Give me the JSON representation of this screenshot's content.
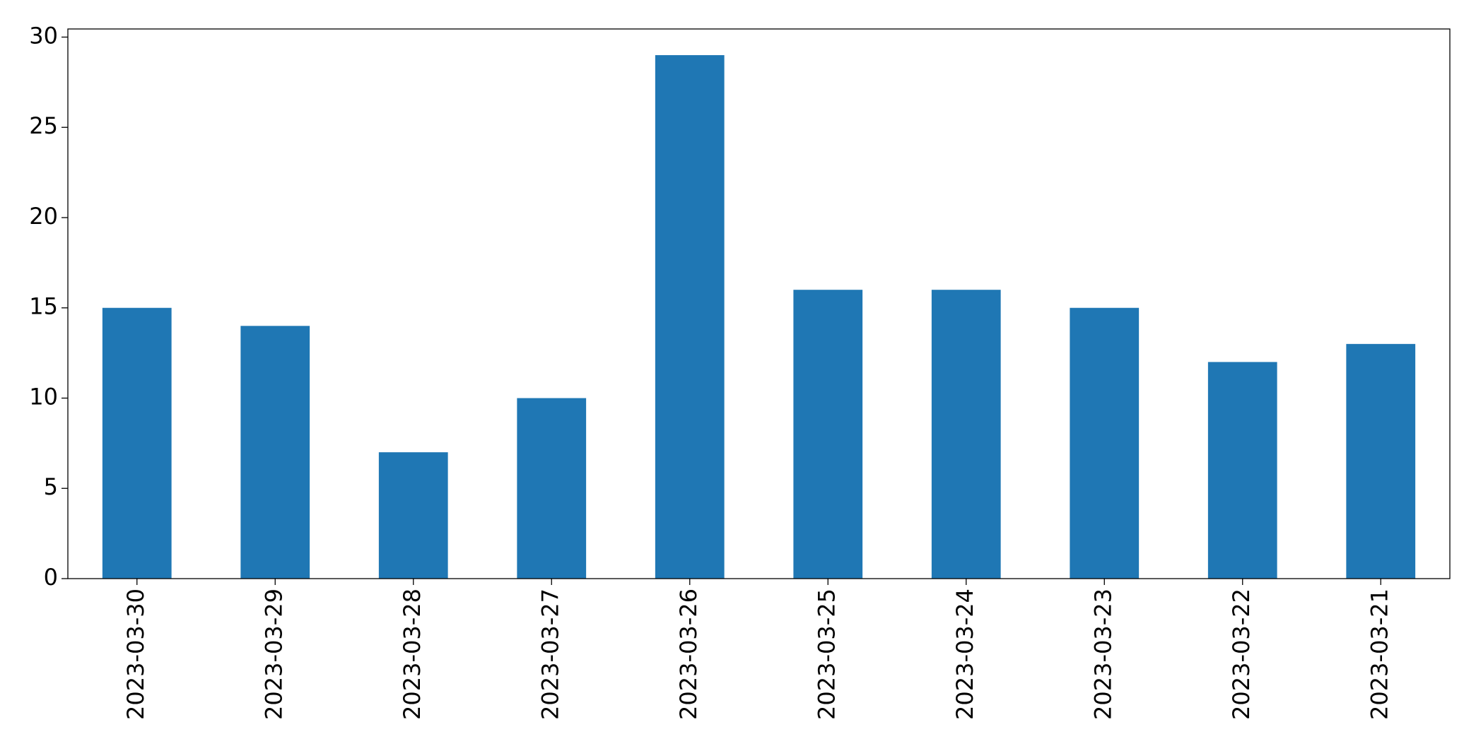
{
  "chart_data": {
    "type": "bar",
    "categories": [
      "2023-03-30",
      "2023-03-29",
      "2023-03-28",
      "2023-03-27",
      "2023-03-26",
      "2023-03-25",
      "2023-03-24",
      "2023-03-23",
      "2023-03-22",
      "2023-03-21"
    ],
    "values": [
      15,
      14,
      7,
      10,
      29,
      16,
      16,
      15,
      12,
      13
    ],
    "color": "#1f77b4",
    "ylim": [
      0,
      30.45
    ],
    "yticks": [
      0,
      5,
      10,
      15,
      20,
      25,
      30
    ],
    "grid": false
  }
}
